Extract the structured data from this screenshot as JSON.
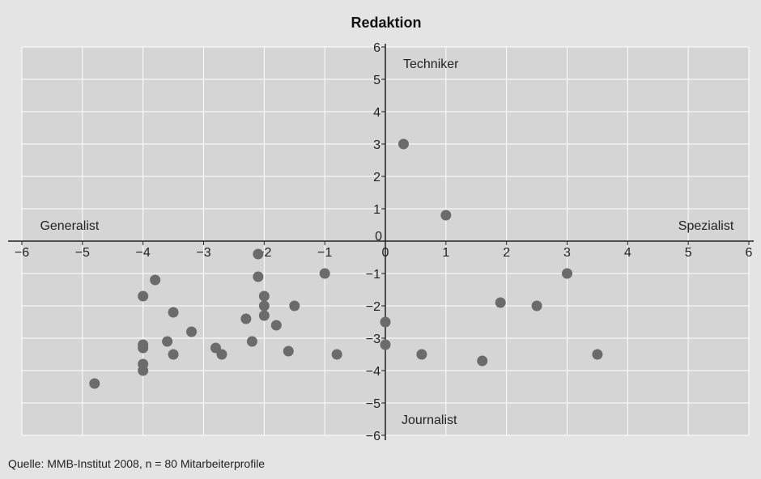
{
  "chart_data": {
    "type": "scatter",
    "title": "Redaktion",
    "xlim": [
      -6,
      6
    ],
    "ylim": [
      -6,
      6
    ],
    "x_ticks": [
      -6,
      -5,
      -4,
      -3,
      -2,
      -1,
      0,
      1,
      2,
      3,
      4,
      5,
      6
    ],
    "y_ticks": [
      6,
      5,
      4,
      3,
      2,
      1,
      0,
      -1,
      -2,
      -3,
      -4,
      -5,
      -6
    ],
    "grid": true,
    "point_color": "#6b6b6b",
    "plot_background": "#d5d5d5",
    "quadrant_labels": {
      "top": "Techniker",
      "bottom": "Journalist",
      "left": "Generalist",
      "right": "Spezialist"
    },
    "points": [
      {
        "x": 0.3,
        "y": 3.0
      },
      {
        "x": 1.0,
        "y": 0.8
      },
      {
        "x": -2.1,
        "y": -0.4
      },
      {
        "x": -2.1,
        "y": -1.1
      },
      {
        "x": -3.8,
        "y": -1.2
      },
      {
        "x": -4.0,
        "y": -1.7
      },
      {
        "x": -1.0,
        "y": -1.0
      },
      {
        "x": 3.0,
        "y": -1.0
      },
      {
        "x": -2.0,
        "y": -1.7
      },
      {
        "x": -2.0,
        "y": -2.0
      },
      {
        "x": -2.0,
        "y": -2.3
      },
      {
        "x": -1.5,
        "y": -2.0
      },
      {
        "x": -3.5,
        "y": -2.2
      },
      {
        "x": -2.3,
        "y": -2.4
      },
      {
        "x": -1.8,
        "y": -2.6
      },
      {
        "x": -3.2,
        "y": -2.8
      },
      {
        "x": -3.6,
        "y": -3.1
      },
      {
        "x": -2.2,
        "y": -3.1
      },
      {
        "x": -4.0,
        "y": -3.2
      },
      {
        "x": -4.0,
        "y": -3.3
      },
      {
        "x": -2.8,
        "y": -3.3
      },
      {
        "x": -3.5,
        "y": -3.5
      },
      {
        "x": -2.7,
        "y": -3.5
      },
      {
        "x": -1.6,
        "y": -3.4
      },
      {
        "x": -0.8,
        "y": -3.5
      },
      {
        "x": -4.0,
        "y": -3.8
      },
      {
        "x": -4.0,
        "y": -4.0
      },
      {
        "x": -4.8,
        "y": -4.4
      },
      {
        "x": 0.0,
        "y": -2.5
      },
      {
        "x": 0.0,
        "y": -3.2
      },
      {
        "x": 0.6,
        "y": -3.5
      },
      {
        "x": 1.6,
        "y": -3.7
      },
      {
        "x": 1.9,
        "y": -1.9
      },
      {
        "x": 2.5,
        "y": -2.0
      },
      {
        "x": 3.5,
        "y": -3.5
      }
    ]
  },
  "source": "Quelle: MMB-Institut 2008, n = 80 Mitarbeiterprofile"
}
